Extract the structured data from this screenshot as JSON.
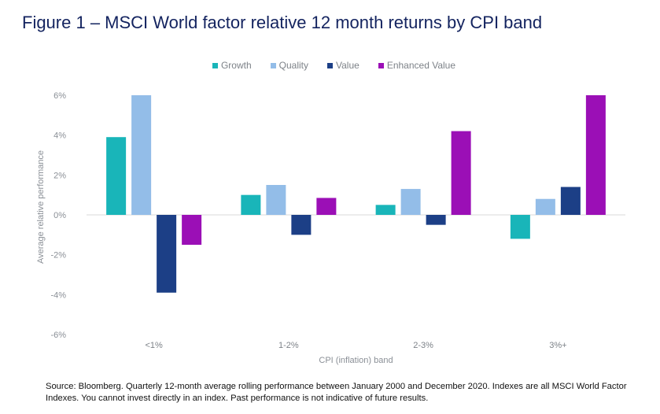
{
  "title": "Figure 1 – MSCI World factor relative 12 month returns by CPI band",
  "source": "Source: Bloomberg. Quarterly 12-month average rolling performance between January 2000 and December 2020. Indexes are all MSCI World Factor Indexes. You cannot invest directly in an index. Past performance is not indicative of future results.",
  "chart_data": {
    "type": "bar",
    "title": "Figure 1 – MSCI World factor relative 12 month returns by CPI band",
    "xlabel": "CPI (inflation) band",
    "ylabel": "Average relative performance",
    "categories": [
      "<1%",
      "1-2%",
      "2-3%",
      "3%+"
    ],
    "ylim": [
      -6,
      6
    ],
    "yticks": [
      6,
      4,
      2,
      0,
      -2,
      -4,
      -6
    ],
    "ytick_labels": [
      "6%",
      "4%",
      "2%",
      "0%",
      "-2%",
      "-4%",
      "-6%"
    ],
    "legend_position": "top-center",
    "grid": false,
    "series": [
      {
        "name": "Growth",
        "color": "#19b5b9",
        "values": [
          3.9,
          1.0,
          0.5,
          -1.2
        ]
      },
      {
        "name": "Quality",
        "color": "#93bde8",
        "values": [
          6.0,
          1.5,
          1.3,
          0.8
        ]
      },
      {
        "name": "Value",
        "color": "#1c3f86",
        "values": [
          -3.9,
          -1.0,
          -0.5,
          1.4
        ]
      },
      {
        "name": "Enhanced Value",
        "color": "#9b0fb6",
        "values": [
          -1.5,
          0.85,
          4.2,
          6.0
        ]
      }
    ]
  }
}
